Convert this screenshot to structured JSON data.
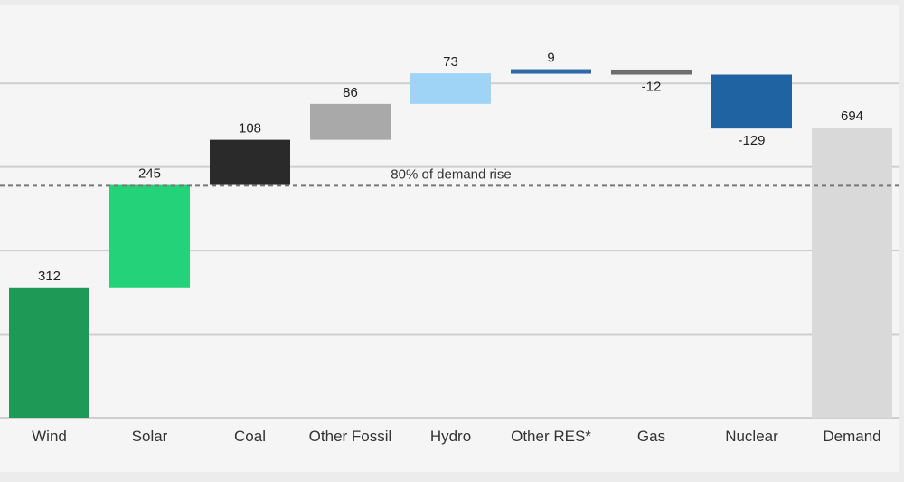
{
  "chart_data": {
    "type": "bar",
    "subtype": "waterfall",
    "title": "",
    "xlabel": "",
    "ylabel": "",
    "categories": [
      "Wind",
      "Solar",
      "Coal",
      "Other Fossil",
      "Hydro",
      "Other RES*",
      "Gas",
      "Nuclear",
      "Demand"
    ],
    "values": [
      312,
      245,
      108,
      86,
      73,
      9,
      -12,
      -129,
      694
    ],
    "value_labels": [
      "312",
      "245",
      "108",
      "86",
      "73",
      "9",
      "-12",
      "-129",
      "694"
    ],
    "total_index": 8,
    "colors": [
      "#1e9a56",
      "#24d27a",
      "#2a2a2a",
      "#a9a9a9",
      "#9fd4f7",
      "#2f6aa8",
      "#6e6e6e",
      "#1f63a3",
      "#d9d9d9"
    ],
    "ylim": [
      0,
      1000
    ],
    "grid": true,
    "legend": "none",
    "reference_line": {
      "value": 555.2,
      "label": "80% of demand rise",
      "style": "dashed"
    }
  }
}
